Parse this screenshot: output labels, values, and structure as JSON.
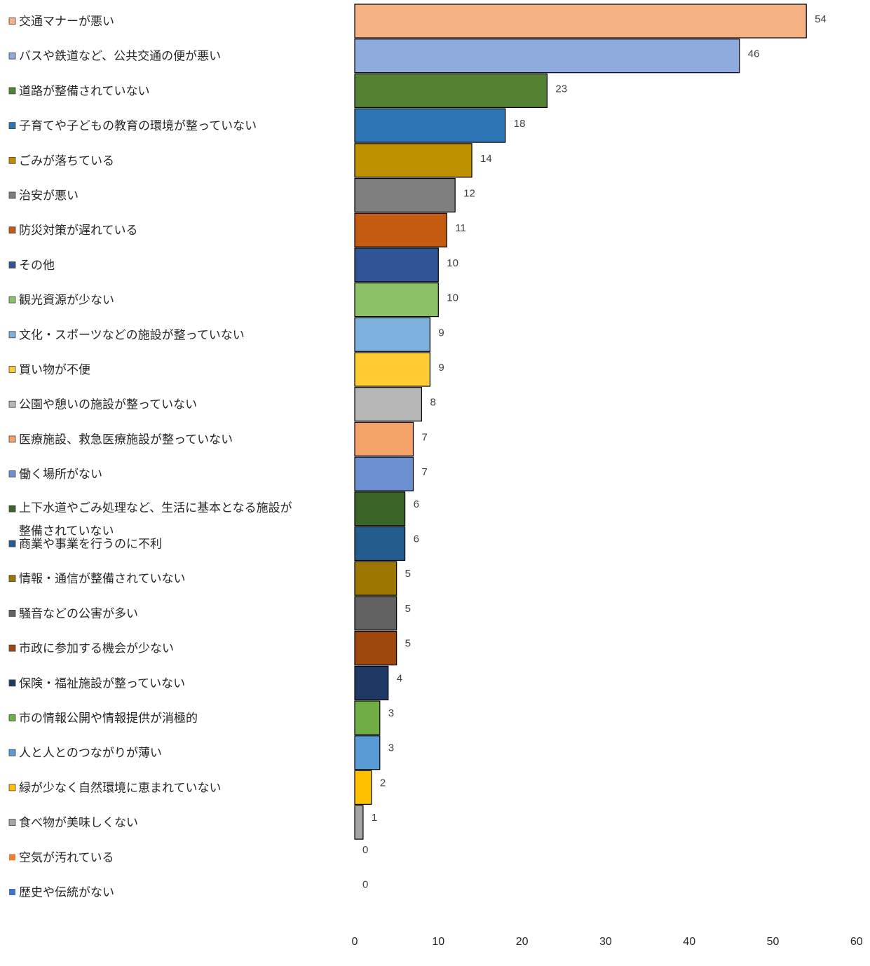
{
  "chart_data": {
    "type": "bar",
    "orientation": "horizontal",
    "title": "",
    "xlabel": "",
    "ylabel": "",
    "xlim": [
      0,
      60
    ],
    "x_ticks": [
      0,
      10,
      20,
      30,
      40,
      50,
      60
    ],
    "grid": false,
    "legend": "none",
    "categories": [
      "交通マナーが悪い",
      "バスや鉄道など、公共交通の便が悪い",
      "道路が整備されていない",
      "子育てや子どもの教育の環境が整っていない",
      "ごみが落ちている",
      "治安が悪い",
      "防災対策が遅れている",
      "その他",
      "観光資源が少ない",
      "文化・スポーツなどの施設が整っていない",
      "買い物が不便",
      "公園や憩いの施設が整っていない",
      "医療施設、救急医療施設が整っていない",
      "働く場所がない",
      "上下水道やごみ処理など、生活に基本となる施設が整備されていない",
      "商業や事業を行うのに不利",
      "情報・通信が整備されていない",
      "騒音などの公害が多い",
      "市政に参加する機会が少ない",
      "保険・福祉施設が整っていない",
      "市の情報公開や情報提供が消極的",
      "人と人とのつながりが薄い",
      "緑が少なく自然環境に恵まれていない",
      "食べ物が美味しくない",
      "空気が汚れている",
      "歴史や伝統がない"
    ],
    "category_lines": [
      [
        "交通マナーが悪い"
      ],
      [
        "バスや鉄道など、公共交通の便が悪い"
      ],
      [
        "道路が整備されていない"
      ],
      [
        "子育てや子どもの教育の環境が整っていない"
      ],
      [
        "ごみが落ちている"
      ],
      [
        "治安が悪い"
      ],
      [
        "防災対策が遅れている"
      ],
      [
        "その他"
      ],
      [
        "観光資源が少ない"
      ],
      [
        "文化・スポーツなどの施設が整っていない"
      ],
      [
        "買い物が不便"
      ],
      [
        "公園や憩いの施設が整っていない"
      ],
      [
        "医療施設、救急医療施設が整っていない"
      ],
      [
        "働く場所がない"
      ],
      [
        "上下水道やごみ処理など、生活に基本となる施設が",
        "整備されていない"
      ],
      [
        "商業や事業を行うのに不利"
      ],
      [
        "情報・通信が整備されていない"
      ],
      [
        "騒音などの公害が多い"
      ],
      [
        "市政に参加する機会が少ない"
      ],
      [
        "保険・福祉施設が整っていない"
      ],
      [
        "市の情報公開や情報提供が消極的"
      ],
      [
        "人と人とのつながりが薄い"
      ],
      [
        "緑が少なく自然環境に恵まれていない"
      ],
      [
        "食べ物が美味しくない"
      ],
      [
        "空気が汚れている"
      ],
      [
        "歴史や伝統がない"
      ]
    ],
    "values": [
      54,
      46,
      23,
      18,
      14,
      12,
      11,
      10,
      10,
      9,
      9,
      8,
      7,
      7,
      6,
      6,
      5,
      5,
      5,
      4,
      3,
      3,
      2,
      1,
      0,
      0
    ],
    "colors": [
      "#F4B183",
      "#8FAADC",
      "#548235",
      "#2E75B6",
      "#BF9000",
      "#7F7F7F",
      "#C55A11",
      "#2F5597",
      "#8CC168",
      "#7EB0DE",
      "#FFCC33",
      "#B7B7B7",
      "#F4A26A",
      "#6C8FD0",
      "#3B6428",
      "#245C8D",
      "#9C7600",
      "#626262",
      "#9E480E",
      "#203864",
      "#70AD47",
      "#5B9BD5",
      "#FFC000",
      "#A5A5A5",
      "#ED7D31",
      "#4472C4"
    ]
  }
}
